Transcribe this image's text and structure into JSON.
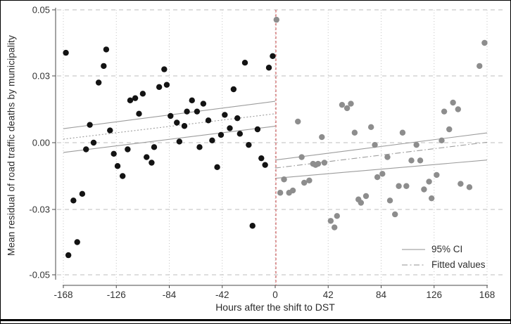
{
  "figure": {
    "y_axis_label": "Mean residual of road traffic deaths by municipality",
    "x_axis_label": "Hours after the shift to DST",
    "legend": {
      "ci_label": "95% CI",
      "fitted_label": "Fitted values"
    }
  },
  "chart_data": {
    "type": "scatter",
    "title": "",
    "xlabel": "Hours after the shift to DST",
    "ylabel": "Mean residual of road traffic deaths by municipality",
    "xlim": [
      -168,
      168
    ],
    "ylim": [
      -0.05,
      0.05
    ],
    "grid": true,
    "legend_position": "lower right",
    "x_ticks": [
      -168,
      -126,
      -84,
      -42,
      0,
      42,
      84,
      126,
      168
    ],
    "x_tick_labels": [
      "-168",
      "-126",
      "-84",
      "-42",
      "0",
      "42",
      "84",
      "126",
      "168"
    ],
    "y_ticks": [
      0.05,
      0.03,
      0.0,
      -0.03,
      -0.05
    ],
    "y_tick_labels": [
      "0.05",
      "0.03",
      "0.00",
      "-0.03",
      "-0.05"
    ],
    "discontinuity_line_x": 0,
    "colors": {
      "pre_points": "#131313",
      "post_points": "#8d8d8d",
      "ci_line": "#9c9c9c",
      "fitted_line": "#9c9c9c",
      "cutoff_line": "#cc5a5a",
      "grid_line": "#c4c4c4",
      "axis_line": "#4a4a4a",
      "tick_text": "#333333"
    },
    "series": [
      {
        "name": "pre_dst_shift",
        "color_key": "pre_points",
        "points": [
          [
            -166,
            0.037
          ],
          [
            -164,
            -0.044
          ],
          [
            -160,
            -0.026
          ],
          [
            -157,
            -0.04
          ],
          [
            -153,
            -0.023
          ],
          [
            -150,
            -0.003
          ],
          [
            -147,
            0.008
          ],
          [
            -144,
            0.0
          ],
          [
            -140,
            0.027
          ],
          [
            -136,
            0.033
          ],
          [
            -134,
            0.038
          ],
          [
            -131,
            0.0055
          ],
          [
            -128,
            -0.005
          ],
          [
            -125,
            -0.0105
          ],
          [
            -121,
            -0.015
          ],
          [
            -117,
            -0.003
          ],
          [
            -115,
            0.019
          ],
          [
            -111,
            0.02
          ],
          [
            -108,
            0.013
          ],
          [
            -105,
            0.022
          ],
          [
            -102,
            -0.0065
          ],
          [
            -98,
            -0.009
          ],
          [
            -96,
            -0.002
          ],
          [
            -92,
            0.025
          ],
          [
            -88,
            0.032
          ],
          [
            -86,
            0.026
          ],
          [
            -83,
            0.012
          ],
          [
            -78,
            0.009
          ],
          [
            -76,
            0.0005
          ],
          [
            -72,
            0.0075
          ],
          [
            -70,
            0.014
          ],
          [
            -66,
            0.019
          ],
          [
            -62,
            0.014
          ],
          [
            -60,
            -0.002
          ],
          [
            -57,
            0.0175
          ],
          [
            -53,
            0.01
          ],
          [
            -50,
            0.001
          ],
          [
            -46,
            -0.011
          ],
          [
            -43,
            0.0035
          ],
          [
            -40,
            0.0125
          ],
          [
            -36,
            0.0065
          ],
          [
            -33,
            0.024
          ],
          [
            -30,
            0.011
          ],
          [
            -28,
            0.004
          ],
          [
            -24,
            0.034
          ],
          [
            -21,
            -0.001
          ],
          [
            -18,
            -0.035
          ],
          [
            -14,
            0.006
          ],
          [
            -11,
            -0.007
          ],
          [
            -8,
            -0.01
          ],
          [
            -5,
            0.0325
          ],
          [
            -2,
            0.036
          ]
        ]
      },
      {
        "name": "post_dst_shift",
        "color_key": "post_points",
        "points": [
          [
            1,
            0.047
          ],
          [
            4,
            -0.0225
          ],
          [
            7,
            -0.0165
          ],
          [
            11,
            -0.0225
          ],
          [
            14,
            -0.0215
          ],
          [
            18,
            0.0095
          ],
          [
            21,
            -0.0065
          ],
          [
            23,
            -0.018
          ],
          [
            27,
            -0.017
          ],
          [
            30,
            -0.0095
          ],
          [
            32,
            -0.01
          ],
          [
            34,
            -0.0095
          ],
          [
            37,
            0.0025
          ],
          [
            39,
            -0.009
          ],
          [
            44,
            -0.0335
          ],
          [
            47,
            -0.0355
          ],
          [
            49,
            -0.032
          ],
          [
            53,
            0.017
          ],
          [
            57,
            0.0155
          ],
          [
            60,
            0.0175
          ],
          [
            63,
            0.0045
          ],
          [
            66,
            -0.0255
          ],
          [
            68,
            -0.027
          ],
          [
            72,
            -0.024
          ],
          [
            76,
            0.007
          ],
          [
            79,
            -0.001
          ],
          [
            81,
            -0.0155
          ],
          [
            85,
            -0.014
          ],
          [
            89,
            -0.0065
          ],
          [
            91,
            -0.026
          ],
          [
            95,
            -0.0315
          ],
          [
            98,
            -0.0195
          ],
          [
            101,
            0.0045
          ],
          [
            104,
            -0.0195
          ],
          [
            108,
            -0.008
          ],
          [
            112,
            -0.001
          ],
          [
            115,
            -0.008
          ],
          [
            118,
            -0.021
          ],
          [
            122,
            -0.0175
          ],
          [
            124,
            -0.025
          ],
          [
            128,
            -0.0145
          ],
          [
            132,
            0.001
          ],
          [
            134,
            0.014
          ],
          [
            138,
            0.006
          ],
          [
            141,
            0.018
          ],
          [
            145,
            0.015
          ],
          [
            147,
            -0.0185
          ],
          [
            154,
            -0.02
          ],
          [
            162,
            0.033
          ],
          [
            166,
            0.04
          ]
        ]
      }
    ],
    "fit_lines": [
      {
        "name": "left_ci_upper",
        "style": "solid",
        "x": [
          -168,
          0
        ],
        "y": [
          0.0063,
          0.0186
        ]
      },
      {
        "name": "left_fitted",
        "style": "dotted",
        "x": [
          -168,
          0
        ],
        "y": [
          0.0016,
          0.013
        ]
      },
      {
        "name": "left_ci_lower",
        "style": "solid",
        "x": [
          -168,
          0
        ],
        "y": [
          -0.0044,
          0.0074
        ]
      },
      {
        "name": "right_ci_upper",
        "style": "solid",
        "x": [
          0,
          168
        ],
        "y": [
          -0.0078,
          0.0044
        ]
      },
      {
        "name": "right_fitted",
        "style": "dashdot",
        "x": [
          0,
          168
        ],
        "y": [
          -0.0114,
          0.0002
        ]
      },
      {
        "name": "right_ci_lower",
        "style": "solid",
        "x": [
          0,
          168
        ],
        "y": [
          -0.016,
          -0.0078
        ]
      }
    ]
  }
}
